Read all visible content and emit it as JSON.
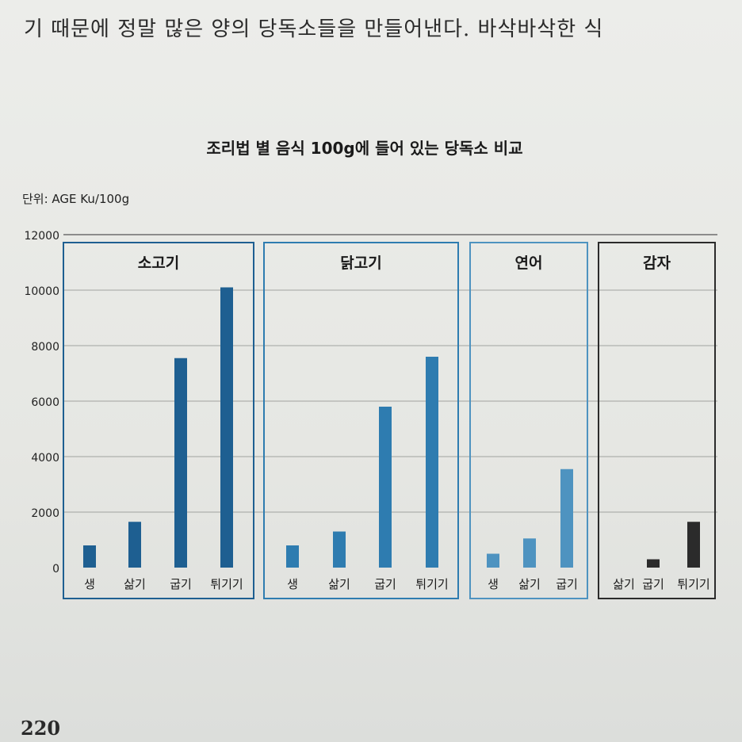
{
  "page": {
    "header_text": "기 때문에 정말 많은 양의 당독소들을 만들어낸다. 바삭바삭한 식",
    "page_number": "220"
  },
  "chart_data": {
    "type": "bar",
    "title": "조리법 별 음식 100g에 들어 있는 당독소 비교",
    "unit_label": "단위: AGE Ku/100g",
    "ylim": [
      0,
      12000
    ],
    "yticks": [
      0,
      2000,
      4000,
      6000,
      8000,
      10000,
      12000
    ],
    "grid": true,
    "groups": [
      {
        "name": "소고기",
        "color": "#1e5f91",
        "categories": [
          "생",
          "삶기",
          "굽기",
          "튀기기"
        ],
        "values": [
          800,
          1650,
          7550,
          10100
        ]
      },
      {
        "name": "닭고기",
        "color": "#2e7cb0",
        "categories": [
          "생",
          "삶기",
          "굽기",
          "튀기기"
        ],
        "values": [
          800,
          1300,
          5800,
          7600
        ]
      },
      {
        "name": "연어",
        "color": "#4e93c0",
        "categories": [
          "생",
          "삶기",
          "굽기"
        ],
        "values": [
          500,
          1050,
          3550
        ]
      },
      {
        "name": "감자",
        "color": "#2b2b2b",
        "categories": [
          "삶기",
          "굽기",
          "튀기기"
        ],
        "values": [
          0,
          300,
          1650
        ]
      }
    ]
  }
}
